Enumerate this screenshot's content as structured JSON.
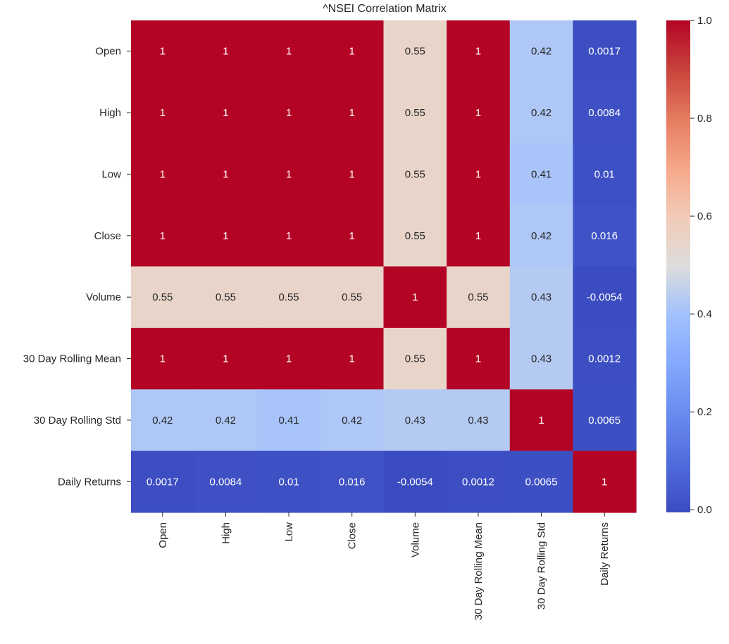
{
  "chart_data": {
    "type": "heatmap",
    "title": "^NSEI Correlation Matrix",
    "xlabel": "",
    "ylabel": "",
    "rows": [
      "Open",
      "High",
      "Low",
      "Close",
      "Volume",
      "30 Day Rolling Mean",
      "30 Day Rolling Std",
      "Daily Returns"
    ],
    "columns": [
      "Open",
      "High",
      "Low",
      "Close",
      "Volume",
      "30 Day Rolling Mean",
      "30 Day Rolling Std",
      "Daily Returns"
    ],
    "values": [
      [
        1,
        1,
        1,
        1,
        0.55,
        1,
        0.42,
        0.0017
      ],
      [
        1,
        1,
        1,
        1,
        0.55,
        1,
        0.42,
        0.0084
      ],
      [
        1,
        1,
        1,
        1,
        0.55,
        1,
        0.41,
        0.01
      ],
      [
        1,
        1,
        1,
        1,
        0.55,
        1,
        0.42,
        0.016
      ],
      [
        0.55,
        0.55,
        0.55,
        0.55,
        1,
        0.55,
        0.43,
        -0.0054
      ],
      [
        1,
        1,
        1,
        1,
        0.55,
        1,
        0.43,
        0.0012
      ],
      [
        0.42,
        0.42,
        0.41,
        0.42,
        0.43,
        0.43,
        1,
        0.0065
      ],
      [
        0.0017,
        0.0084,
        0.01,
        0.016,
        -0.0054,
        0.0012,
        0.0065,
        1
      ]
    ],
    "annotations": [
      [
        "1",
        "1",
        "1",
        "1",
        "0.55",
        "1",
        "0.42",
        "0.0017"
      ],
      [
        "1",
        "1",
        "1",
        "1",
        "0.55",
        "1",
        "0.42",
        "0.0084"
      ],
      [
        "1",
        "1",
        "1",
        "1",
        "0.55",
        "1",
        "0.41",
        "0.01"
      ],
      [
        "1",
        "1",
        "1",
        "1",
        "0.55",
        "1",
        "0.42",
        "0.016"
      ],
      [
        "0.55",
        "0.55",
        "0.55",
        "0.55",
        "1",
        "0.55",
        "0.43",
        "-0.0054"
      ],
      [
        "1",
        "1",
        "1",
        "1",
        "0.55",
        "1",
        "0.43",
        "0.0012"
      ],
      [
        "0.42",
        "0.42",
        "0.41",
        "0.42",
        "0.43",
        "0.43",
        "1",
        "0.0065"
      ],
      [
        "0.0017",
        "0.0084",
        "0.01",
        "0.016",
        "-0.0054",
        "0.0012",
        "0.0065",
        "1"
      ]
    ],
    "colormap": "coolwarm",
    "vmin": -0.0054,
    "vmax": 1,
    "colorbar": {
      "ticks": [
        0.0,
        0.2,
        0.4,
        0.6,
        0.8,
        1.0
      ],
      "tick_labels": [
        "0.0",
        "0.2",
        "0.4",
        "0.6",
        "0.8",
        "1.0"
      ],
      "placement": "right"
    }
  }
}
